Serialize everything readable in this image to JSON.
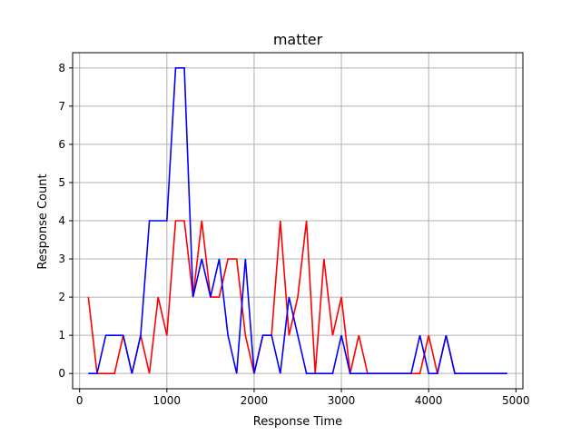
{
  "chart_data": {
    "type": "line",
    "title": "matter",
    "xlabel": "Response Time",
    "ylabel": "Response Count",
    "xlim": [
      -80,
      5080
    ],
    "ylim": [
      -0.4,
      8.4
    ],
    "xticks": [
      0,
      1000,
      2000,
      3000,
      4000,
      5000
    ],
    "yticks": [
      0,
      1,
      2,
      3,
      4,
      5,
      6,
      7,
      8
    ],
    "grid": true,
    "x": [
      100,
      200,
      300,
      400,
      500,
      600,
      700,
      800,
      900,
      1000,
      1100,
      1200,
      1300,
      1400,
      1500,
      1600,
      1700,
      1800,
      1900,
      2000,
      2100,
      2200,
      2300,
      2400,
      2500,
      2600,
      2700,
      2800,
      2900,
      3000,
      3100,
      3200,
      3300,
      3400,
      3500,
      3600,
      3700,
      3800,
      3900,
      4000,
      4100,
      4200,
      4300,
      4400,
      4500,
      4600,
      4700,
      4800,
      4900
    ],
    "series": [
      {
        "color": "#ff0000",
        "values": [
          2,
          0,
          0,
          0,
          1,
          0,
          1,
          0,
          2,
          1,
          4,
          4,
          2,
          4,
          2,
          2,
          3,
          3,
          1,
          0,
          1,
          1,
          4,
          1,
          2,
          4,
          0,
          3,
          1,
          2,
          0,
          1,
          0,
          0,
          0,
          0,
          0,
          0,
          0,
          1,
          0,
          1,
          0,
          0,
          0,
          0,
          0,
          0,
          0
        ]
      },
      {
        "color": "#0000ff",
        "values": [
          0,
          0,
          1,
          1,
          1,
          0,
          1,
          4,
          4,
          4,
          8,
          8,
          2,
          3,
          2,
          3,
          1,
          0,
          3,
          0,
          1,
          1,
          0,
          2,
          1,
          0,
          0,
          0,
          0,
          1,
          0,
          0,
          0,
          0,
          0,
          0,
          0,
          0,
          1,
          0,
          0,
          1,
          0,
          0,
          0,
          0,
          0,
          0,
          0
        ]
      }
    ]
  }
}
